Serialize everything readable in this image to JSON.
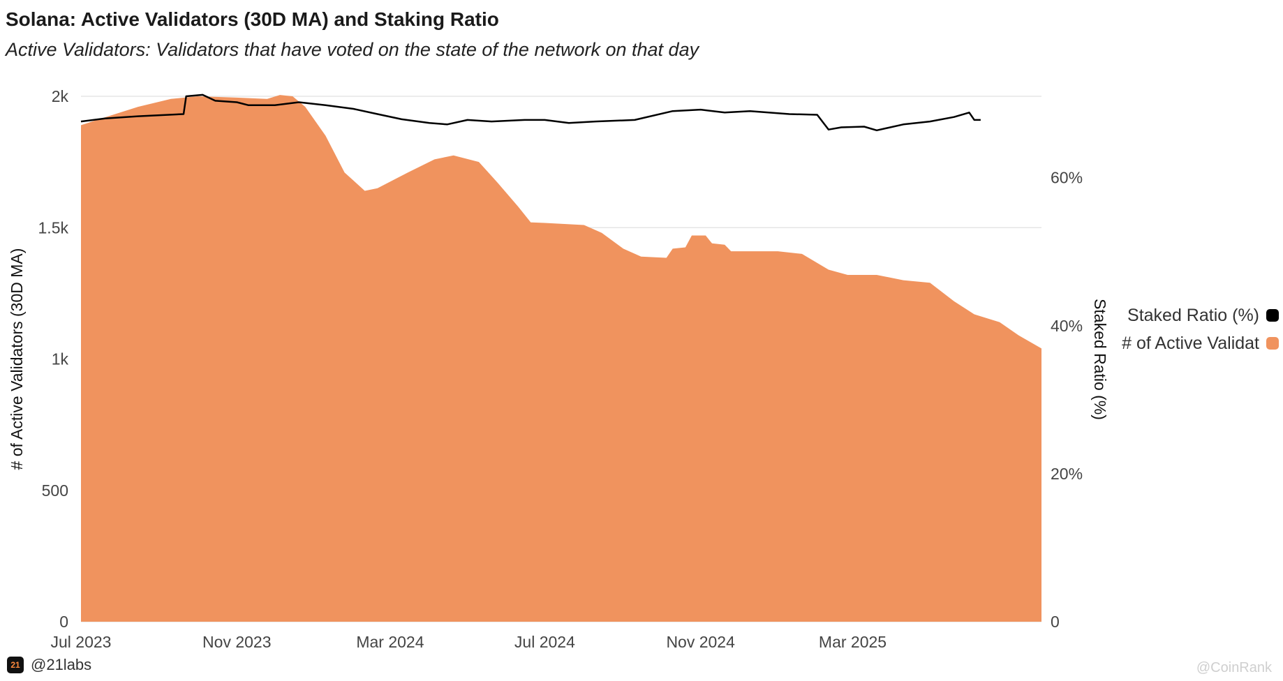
{
  "title": "Solana: Active Validators (30D MA) and Staking Ratio",
  "subtitle": "Active Validators: Validators that have voted on the state of the network on that day",
  "footer": {
    "handle": "@21labs",
    "logo_text": "21"
  },
  "watermark": "@CoinRank",
  "colors": {
    "validators": "#F0935E",
    "staked_ratio": "#000000",
    "grid": "#e6e6e6"
  },
  "chart_data": {
    "type": "area",
    "x_type": "date",
    "x_ticks": [
      "Jul 2023",
      "Nov 2023",
      "Mar 2024",
      "Jul 2024",
      "Nov 2024",
      "Mar 2025"
    ],
    "x_range": [
      "2023-07-01",
      "2025-07-28"
    ],
    "y_left": {
      "label": "# of Active Validators (30D MA)",
      "range": [
        0,
        2000
      ],
      "ticks": [
        0,
        500,
        1000,
        1500,
        2000
      ],
      "tick_labels": [
        "0",
        "500",
        "1k",
        "1.5k",
        "2k"
      ]
    },
    "y_right": {
      "label": "Staked Ratio (%)",
      "range": [
        0,
        71
      ],
      "ticks": [
        0,
        20,
        40,
        60
      ],
      "tick_labels": [
        "0",
        "20%",
        "40%",
        "60%"
      ]
    },
    "grid": true,
    "legend_position": "right",
    "series": [
      {
        "name": "Staked Ratio (%)",
        "type": "line",
        "axis": "right",
        "color": "#000000",
        "points": [
          [
            "2023-07-01",
            67.6
          ],
          [
            "2023-07-20",
            68.0
          ],
          [
            "2023-08-15",
            68.3
          ],
          [
            "2023-09-20",
            68.6
          ],
          [
            "2023-09-22",
            71.0
          ],
          [
            "2023-10-05",
            71.2
          ],
          [
            "2023-10-15",
            70.4
          ],
          [
            "2023-11-01",
            70.2
          ],
          [
            "2023-11-10",
            69.8
          ],
          [
            "2023-12-01",
            69.8
          ],
          [
            "2023-12-20",
            70.2
          ],
          [
            "2024-01-10",
            69.8
          ],
          [
            "2024-02-01",
            69.3
          ],
          [
            "2024-02-20",
            68.6
          ],
          [
            "2024-03-10",
            67.9
          ],
          [
            "2024-04-01",
            67.4
          ],
          [
            "2024-04-15",
            67.2
          ],
          [
            "2024-05-01",
            67.8
          ],
          [
            "2024-05-20",
            67.6
          ],
          [
            "2024-06-15",
            67.8
          ],
          [
            "2024-07-01",
            67.8
          ],
          [
            "2024-07-20",
            67.4
          ],
          [
            "2024-08-10",
            67.6
          ],
          [
            "2024-09-10",
            67.8
          ],
          [
            "2024-10-10",
            69.0
          ],
          [
            "2024-11-01",
            69.2
          ],
          [
            "2024-11-20",
            68.8
          ],
          [
            "2024-12-10",
            69.0
          ],
          [
            "2025-01-10",
            68.6
          ],
          [
            "2025-02-01",
            68.5
          ],
          [
            "2025-02-10",
            66.5
          ],
          [
            "2025-02-20",
            66.8
          ],
          [
            "2025-03-10",
            66.9
          ],
          [
            "2025-03-20",
            66.4
          ],
          [
            "2025-04-10",
            67.2
          ],
          [
            "2025-05-01",
            67.6
          ],
          [
            "2025-05-20",
            68.2
          ],
          [
            "2025-06-01",
            68.8
          ],
          [
            "2025-06-05",
            67.8
          ],
          [
            "2025-06-10",
            67.8
          ]
        ]
      },
      {
        "name": "# of Active Validat",
        "type": "area",
        "axis": "left",
        "color": "#F0935E",
        "points": [
          [
            "2023-07-01",
            1890
          ],
          [
            "2023-07-20",
            1920
          ],
          [
            "2023-08-15",
            1960
          ],
          [
            "2023-09-10",
            1990
          ],
          [
            "2023-10-01",
            2000
          ],
          [
            "2023-11-01",
            1995
          ],
          [
            "2023-11-25",
            1990
          ],
          [
            "2023-12-05",
            2005
          ],
          [
            "2023-12-15",
            2000
          ],
          [
            "2023-12-25",
            1960
          ],
          [
            "2024-01-10",
            1850
          ],
          [
            "2024-01-25",
            1710
          ],
          [
            "2024-02-10",
            1640
          ],
          [
            "2024-02-20",
            1650
          ],
          [
            "2024-03-15",
            1710
          ],
          [
            "2024-04-05",
            1760
          ],
          [
            "2024-04-20",
            1775
          ],
          [
            "2024-05-10",
            1750
          ],
          [
            "2024-05-25",
            1670
          ],
          [
            "2024-06-10",
            1580
          ],
          [
            "2024-06-20",
            1520
          ],
          [
            "2024-07-01",
            1518
          ],
          [
            "2024-08-01",
            1510
          ],
          [
            "2024-08-15",
            1480
          ],
          [
            "2024-09-01",
            1420
          ],
          [
            "2024-09-15",
            1390
          ],
          [
            "2024-10-05",
            1385
          ],
          [
            "2024-10-10",
            1420
          ],
          [
            "2024-10-20",
            1425
          ],
          [
            "2024-10-25",
            1470
          ],
          [
            "2024-11-05",
            1470
          ],
          [
            "2024-11-10",
            1440
          ],
          [
            "2024-11-20",
            1435
          ],
          [
            "2024-11-25",
            1410
          ],
          [
            "2025-01-01",
            1410
          ],
          [
            "2025-01-20",
            1400
          ],
          [
            "2025-02-10",
            1340
          ],
          [
            "2025-02-25",
            1320
          ],
          [
            "2025-03-20",
            1320
          ],
          [
            "2025-04-10",
            1300
          ],
          [
            "2025-05-01",
            1290
          ],
          [
            "2025-05-20",
            1220
          ],
          [
            "2025-06-05",
            1170
          ],
          [
            "2025-06-25",
            1140
          ],
          [
            "2025-07-10",
            1090
          ],
          [
            "2025-07-28",
            1040
          ]
        ]
      }
    ]
  }
}
